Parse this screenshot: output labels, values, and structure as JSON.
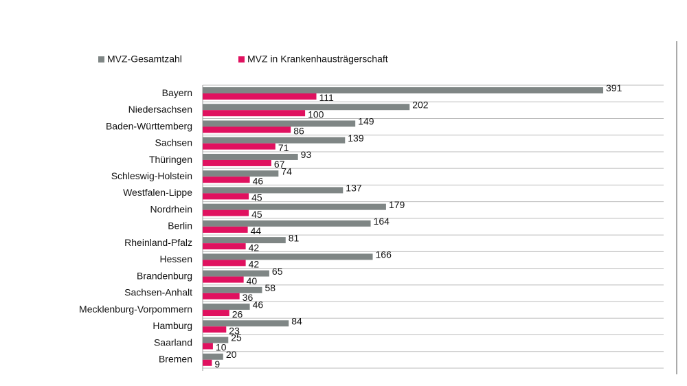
{
  "chart_data": {
    "type": "bar",
    "categories": [
      "Bayern",
      "Niedersachsen",
      "Baden-Württemberg",
      "Sachsen",
      "Thüringen",
      "Schleswig-Holstein",
      "Westfalen-Lippe",
      "Nordrhein",
      "Berlin",
      "Rheinland-Pfalz",
      "Hessen",
      "Brandenburg",
      "Sachsen-Anhalt",
      "Mecklenburg-Vorpommern",
      "Hamburg",
      "Saarland",
      "Bremen"
    ],
    "series": [
      {
        "name": "MVZ-Gesamtzahl",
        "color": "#7f8685",
        "values": [
          391,
          202,
          149,
          139,
          93,
          74,
          137,
          179,
          164,
          81,
          166,
          65,
          58,
          46,
          84,
          25,
          20
        ]
      },
      {
        "name": "MVZ in Krankenhausträgerschaft",
        "color": "#e0115f",
        "values": [
          111,
          100,
          86,
          71,
          67,
          46,
          45,
          45,
          44,
          42,
          42,
          40,
          36,
          26,
          23,
          10,
          9
        ]
      }
    ],
    "xlim": [
      0,
      450
    ]
  }
}
